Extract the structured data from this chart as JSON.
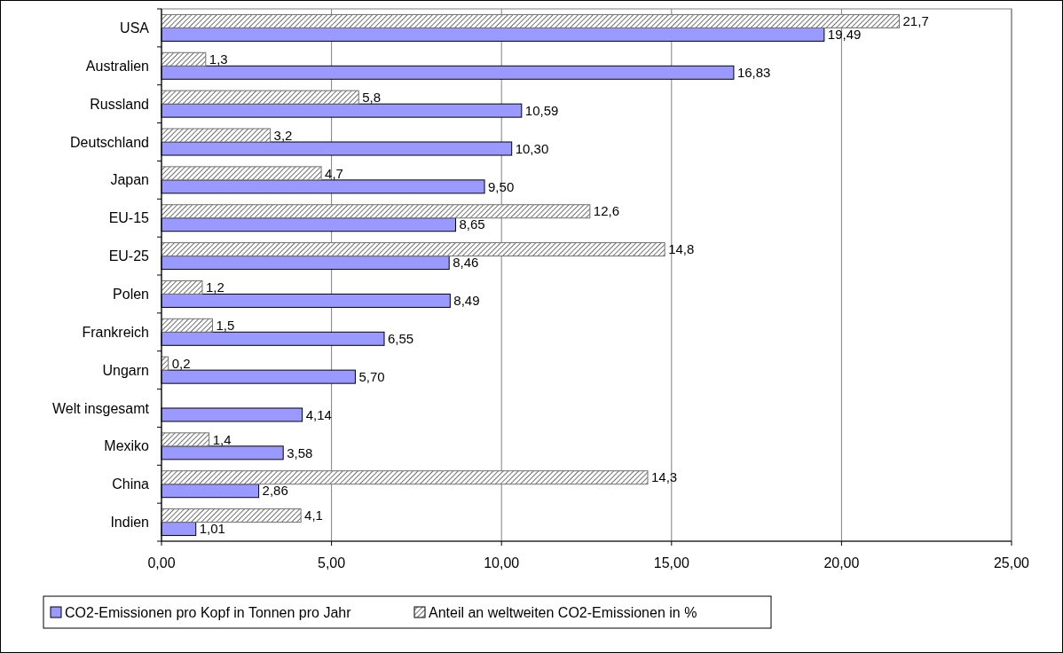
{
  "chart_data": {
    "type": "bar",
    "orientation": "horizontal",
    "categories": [
      "USA",
      "Australien",
      "Russland",
      "Deutschland",
      "Japan",
      "EU-15",
      "EU-25",
      "Polen",
      "Frankreich",
      "Ungarn",
      "Welt insgesamt",
      "Mexiko",
      "China",
      "Indien"
    ],
    "series": [
      {
        "name": "CO2-Emissionen pro Kopf in Tonnen pro Jahr",
        "color": "#9999ff",
        "values": [
          19.49,
          16.83,
          10.59,
          10.3,
          9.5,
          8.65,
          8.46,
          8.49,
          6.55,
          5.7,
          4.14,
          3.58,
          2.86,
          1.01
        ],
        "value_labels": [
          "19,49",
          "16,83",
          "10,59",
          "10,30",
          "9,50",
          "8,65",
          "8,46",
          "8,49",
          "6,55",
          "5,70",
          "4,14",
          "3,58",
          "2,86",
          "1,01"
        ]
      },
      {
        "name": "Anteil an weltweiten CO2-Emissionen in %",
        "color": "#707070",
        "values": [
          21.7,
          1.3,
          5.8,
          3.2,
          4.7,
          12.6,
          14.8,
          1.2,
          1.5,
          0.2,
          null,
          1.4,
          14.3,
          4.1
        ],
        "value_labels": [
          "21,7",
          "1,3",
          "5,8",
          "3,2",
          "4,7",
          "12,6",
          "14,8",
          "1,2",
          "1,5",
          "0,2",
          null,
          "1,4",
          "14,3",
          "4,1"
        ]
      }
    ],
    "xlim": [
      0,
      25
    ],
    "xticks": [
      {
        "value": 0,
        "label": "0,00"
      },
      {
        "value": 5,
        "label": "5,00"
      },
      {
        "value": 10,
        "label": "10,00"
      },
      {
        "value": 15,
        "label": "15,00"
      },
      {
        "value": 20,
        "label": "20,00"
      },
      {
        "value": 25,
        "label": "25,00"
      }
    ],
    "grid": "x",
    "legend": "bottom"
  }
}
